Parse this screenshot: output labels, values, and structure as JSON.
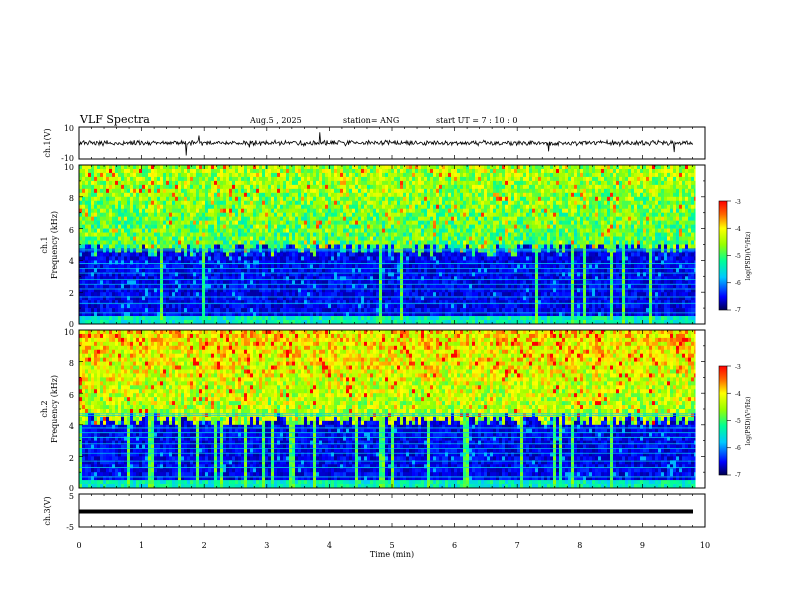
{
  "header": {
    "title": "VLF Spectra",
    "date": "Aug.5  , 2025",
    "station": "station= ANG",
    "start": "start  UT =   7 : 10 : 0"
  },
  "chart_data": [
    {
      "type": "line",
      "name": "ch1-waveform",
      "ylabel": "ch.1(V)",
      "ylim": [
        -10,
        10
      ],
      "yticks": [
        "10",
        "-10"
      ],
      "xlim": [
        0,
        10
      ],
      "baseline": 0
    },
    {
      "type": "heatmap",
      "name": "ch1-spectrogram",
      "ylabel": "ch.1\nFrequency (kHz)",
      "ylabel_lines": [
        "ch.1",
        "Frequency (kHz)"
      ],
      "ylim": [
        0,
        10
      ],
      "yticks": [
        "0",
        "2",
        "4",
        "6",
        "8",
        "10"
      ],
      "xlim": [
        0,
        10
      ],
      "data_extent_min": 9.85,
      "colorbar": {
        "label": "log(PSD)(V²/Hz)",
        "range": [
          -7,
          -3
        ],
        "ticks": [
          "-3",
          "-4",
          "-5",
          "-6",
          "-7"
        ]
      }
    },
    {
      "type": "heatmap",
      "name": "ch2-spectrogram",
      "ylabel": "ch.2\nFrequency (kHz)",
      "ylabel_lines": [
        "ch.2",
        "Frequency (kHz)"
      ],
      "ylim": [
        0,
        10
      ],
      "yticks": [
        "0",
        "2",
        "4",
        "6",
        "8",
        "10"
      ],
      "xlim": [
        0,
        10
      ],
      "data_extent_min": 9.85,
      "colorbar": {
        "label": "log(PSD)(V²/Hz)",
        "range": [
          -7,
          -3
        ],
        "ticks": [
          "-3",
          "-4",
          "-5",
          "-6",
          "-7"
        ]
      }
    },
    {
      "type": "line",
      "name": "ch3-waveform",
      "ylabel": "ch.3(V)",
      "ylim": [
        -5,
        5
      ],
      "yticks": [
        "5",
        "-5"
      ],
      "xlim": [
        0,
        10
      ],
      "baseline": 0
    }
  ],
  "xaxis": {
    "label": "Time  (min)",
    "ticks": [
      "0",
      "1",
      "2",
      "3",
      "4",
      "5",
      "6",
      "7",
      "8",
      "9",
      "10"
    ]
  }
}
